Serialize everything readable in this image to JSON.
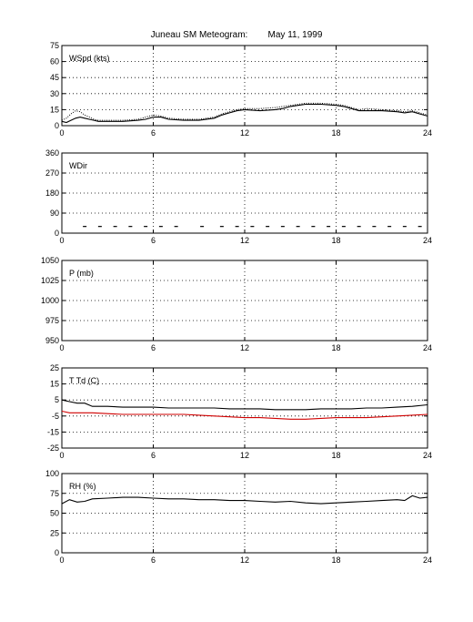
{
  "title": "Juneau SM Meteogram:        May 11, 1999",
  "chart_data": [
    {
      "type": "line",
      "label": "WSpd (kts)",
      "xlim": [
        0,
        24
      ],
      "xticks": [
        0,
        6,
        12,
        18,
        24
      ],
      "ylim": [
        0,
        75
      ],
      "yticks": [
        0,
        15,
        30,
        45,
        60,
        75
      ],
      "grid": true,
      "series": [
        {
          "color": "#000000",
          "style": "dotted",
          "x": [
            0,
            0.3,
            0.6,
            0.9,
            1.2,
            1.5,
            1.8,
            2.1,
            2.4,
            3,
            4,
            5,
            5.5,
            6,
            6.5,
            7,
            8,
            9,
            10,
            10.5,
            11,
            11.5,
            12,
            13,
            14,
            14.5,
            15,
            15.5,
            16,
            17,
            18,
            18.5,
            19,
            19.5,
            20,
            21,
            22,
            22.5,
            23,
            23.5,
            24
          ],
          "y": [
            5,
            7,
            11,
            14,
            13,
            10,
            8,
            6,
            5,
            5,
            5,
            6,
            8,
            10,
            9,
            7,
            6,
            6,
            8,
            11,
            13,
            15,
            16,
            16,
            17,
            18,
            19,
            20,
            21,
            21,
            20,
            19,
            17,
            15,
            16,
            15,
            14,
            13,
            14,
            12,
            10
          ]
        },
        {
          "color": "#000000",
          "style": "solid",
          "x": [
            0,
            0.3,
            0.6,
            0.9,
            1.2,
            1.5,
            1.8,
            2.1,
            2.4,
            3,
            4,
            5,
            5.5,
            6,
            6.5,
            7,
            8,
            9,
            10,
            10.5,
            11,
            11.5,
            12,
            13,
            14,
            14.5,
            15,
            15.5,
            16,
            17,
            18,
            18.5,
            19,
            19.5,
            20,
            21,
            22,
            22.5,
            23,
            23.5,
            24
          ],
          "y": [
            4,
            3,
            5,
            7,
            8,
            7,
            6,
            5,
            4,
            4,
            4,
            5,
            6,
            8,
            8,
            6,
            5,
            5,
            7,
            10,
            12,
            14,
            15,
            14,
            15,
            16,
            18,
            19,
            20,
            20,
            19,
            18,
            16,
            14,
            14,
            14,
            13,
            12,
            13,
            11,
            9
          ]
        }
      ]
    },
    {
      "type": "scatter",
      "label": "WDir",
      "xlim": [
        0,
        24
      ],
      "xticks": [
        0,
        6,
        12,
        18,
        24
      ],
      "ylim": [
        0,
        360
      ],
      "yticks": [
        0,
        90,
        180,
        270,
        360
      ],
      "grid": true,
      "series": [
        {
          "color": "#000000",
          "marker": "dash",
          "x": [
            1.5,
            2.5,
            3.5,
            4.5,
            5.5,
            6.5,
            7.5,
            9.2,
            10.5,
            11.5,
            12.5,
            13.5,
            14.5,
            15.5,
            16.5,
            17.5,
            18.5,
            19.5,
            20.5,
            21.5,
            22.5,
            23.5
          ],
          "y": [
            30,
            30,
            30,
            30,
            30,
            30,
            30,
            30,
            30,
            30,
            30,
            30,
            30,
            30,
            30,
            30,
            30,
            30,
            30,
            30,
            30,
            30
          ]
        }
      ]
    },
    {
      "type": "line",
      "label": "P (mb)",
      "xlim": [
        0,
        24
      ],
      "xticks": [
        0,
        6,
        12,
        18,
        24
      ],
      "ylim": [
        950,
        1050
      ],
      "yticks": [
        950,
        975,
        1000,
        1025,
        1050
      ],
      "grid": true,
      "series": []
    },
    {
      "type": "line",
      "label": "T  Td  (C)",
      "xlim": [
        0,
        24
      ],
      "xticks": [
        0,
        6,
        12,
        18,
        24
      ],
      "ylim": [
        -25,
        25
      ],
      "yticks": [
        -25,
        -15,
        -5,
        5,
        15,
        25
      ],
      "grid": true,
      "series": [
        {
          "color": "#000000",
          "style": "solid",
          "x": [
            0,
            0.5,
            1,
            1.5,
            2,
            3,
            4,
            5,
            6,
            7,
            8,
            9,
            10,
            11,
            12,
            13,
            14,
            15,
            16,
            17,
            18,
            19,
            20,
            21,
            22,
            23,
            24
          ],
          "y": [
            5,
            4,
            3,
            3,
            1,
            1,
            0.5,
            0.5,
            0.5,
            0,
            0,
            0,
            0,
            -0.5,
            -0.5,
            -0.5,
            -1,
            -1,
            -1,
            -0.5,
            -0.5,
            -0.5,
            0,
            0,
            0.5,
            1,
            2
          ]
        },
        {
          "color": "#d00000",
          "style": "solid",
          "x": [
            0,
            0.5,
            1,
            1.5,
            2,
            3,
            4,
            5,
            6,
            7,
            8,
            9,
            10,
            11,
            12,
            13,
            14,
            15,
            16,
            17,
            18,
            19,
            20,
            21,
            22,
            23,
            24
          ],
          "y": [
            -2,
            -3,
            -3,
            -3,
            -3,
            -3.5,
            -4,
            -4,
            -4,
            -4,
            -4,
            -4.5,
            -5,
            -5.5,
            -6,
            -6,
            -6.5,
            -7,
            -7,
            -6.5,
            -6,
            -6,
            -6,
            -5.5,
            -5,
            -4.5,
            -4
          ]
        }
      ]
    },
    {
      "type": "line",
      "label": "RH  (%)",
      "xlim": [
        0,
        24
      ],
      "xticks": [
        0,
        6,
        12,
        18,
        24
      ],
      "ylim": [
        0,
        100
      ],
      "yticks": [
        0,
        25,
        50,
        75,
        100
      ],
      "grid": true,
      "series": [
        {
          "color": "#000000",
          "style": "solid",
          "x": [
            0,
            0.5,
            1,
            1.5,
            2,
            3,
            4,
            5,
            6,
            7,
            8,
            9,
            10,
            11,
            12,
            13,
            14,
            15,
            16,
            17,
            18,
            19,
            20,
            21,
            22,
            22.5,
            23,
            23.5,
            24
          ],
          "y": [
            62,
            67,
            64,
            65,
            68,
            69,
            70,
            70,
            69,
            68,
            68,
            67,
            67,
            66,
            66,
            65,
            64,
            65,
            63,
            62,
            63,
            64,
            65,
            66,
            67,
            66,
            72,
            69,
            70
          ]
        }
      ]
    }
  ]
}
